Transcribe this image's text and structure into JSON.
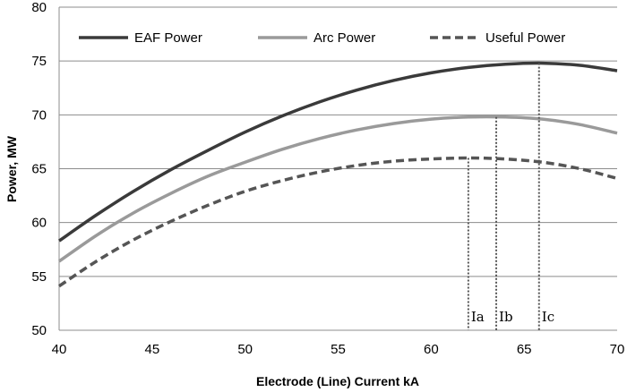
{
  "chart_data": {
    "type": "line",
    "xlabel": "Electrode (Line) Current kA",
    "ylabel": "Power, MW",
    "xlim": [
      40,
      70
    ],
    "ylim": [
      50,
      80
    ],
    "x_ticks": [
      40,
      45,
      50,
      55,
      60,
      65,
      70
    ],
    "y_ticks": [
      50,
      55,
      60,
      65,
      70,
      75,
      80
    ],
    "grid": "horizontal",
    "legend_position": "top",
    "series": [
      {
        "name": "EAF Power",
        "color": "#3a3a3a",
        "style": "solid",
        "x": [
          40,
          42,
          44,
          46,
          48,
          50,
          52,
          54,
          56,
          58,
          60,
          62,
          64,
          66,
          68,
          70
        ],
        "values": [
          58.3,
          60.7,
          62.9,
          64.9,
          66.7,
          68.4,
          69.9,
          71.2,
          72.3,
          73.2,
          73.9,
          74.4,
          74.7,
          74.8,
          74.6,
          74.1
        ]
      },
      {
        "name": "Arc Power",
        "color": "#9a9a9a",
        "style": "solid",
        "x": [
          40,
          42,
          44,
          46,
          48,
          50,
          52,
          54,
          56,
          58,
          60,
          62,
          64,
          66,
          68,
          70
        ],
        "values": [
          56.4,
          58.8,
          60.9,
          62.7,
          64.3,
          65.6,
          66.8,
          67.8,
          68.6,
          69.2,
          69.6,
          69.8,
          69.8,
          69.6,
          69.1,
          68.3
        ]
      },
      {
        "name": "Useful Power",
        "color": "#555555",
        "style": "dashed",
        "x": [
          40,
          42,
          44,
          46,
          48,
          50,
          52,
          54,
          56,
          58,
          60,
          62,
          64,
          66,
          68,
          70
        ],
        "values": [
          54.1,
          56.4,
          58.4,
          60.1,
          61.6,
          62.9,
          63.9,
          64.7,
          65.3,
          65.7,
          65.9,
          66.0,
          65.9,
          65.6,
          65.0,
          64.1
        ]
      }
    ],
    "markers": [
      {
        "label": "Ia",
        "x": 62.0,
        "y": 66.0
      },
      {
        "label": "Ib",
        "x": 63.5,
        "y": 69.8
      },
      {
        "label": "Ic",
        "x": 65.8,
        "y": 74.8
      }
    ]
  }
}
